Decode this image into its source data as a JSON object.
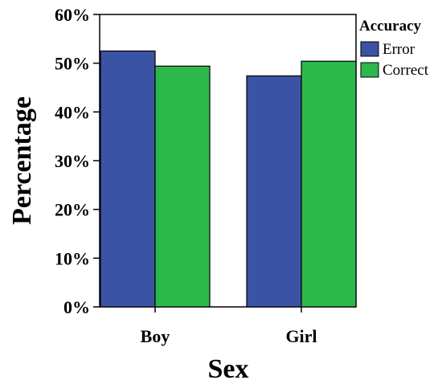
{
  "chart_data": {
    "type": "bar",
    "categories": [
      "Boy",
      "Girl"
    ],
    "series": [
      {
        "name": "Error",
        "values": [
          52.5,
          47.4
        ],
        "color": "#3a53a4"
      },
      {
        "name": "Correct",
        "values": [
          49.4,
          50.4
        ],
        "color": "#2db84b"
      }
    ],
    "xlabel": "Sex",
    "ylabel": "Percentage",
    "ylim": [
      0,
      60
    ],
    "yticks": [
      "0%",
      "10%",
      "20%",
      "30%",
      "40%",
      "50%",
      "60%"
    ],
    "legend": {
      "title": "Accuracy",
      "placement": "top-right"
    },
    "grid": false
  }
}
